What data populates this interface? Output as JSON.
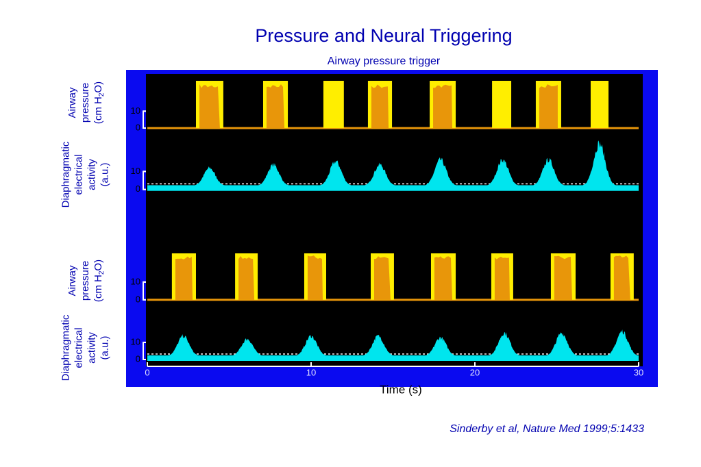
{
  "chart_data": {
    "type": "trace",
    "title": "Pressure and Neural Triggering",
    "subtitle": "Airway pressure trigger",
    "xlabel": "Time (s)",
    "citation": "Sinderby et al, Nature Med 1999;5:1433",
    "xlim": [
      0,
      30
    ],
    "xticks": [
      0,
      10,
      20,
      30
    ],
    "panels": [
      {
        "kind": "pressure",
        "ylabel": [
          "Airway",
          "pressure"
        ],
        "unit": [
          "(cm H",
          "2",
          "O)"
        ],
        "ylim": [
          -2,
          32
        ],
        "yticks": [
          0,
          10
        ],
        "color": "#e8960a",
        "window_color": "#ffee00",
        "windows": [
          [
            2.97,
            4.64
          ],
          [
            7.07,
            8.58
          ],
          [
            10.75,
            12.0
          ],
          [
            13.47,
            14.94
          ],
          [
            17.24,
            18.83
          ],
          [
            21.05,
            22.22
          ],
          [
            23.72,
            25.27
          ],
          [
            27.07,
            28.16
          ]
        ],
        "levels": [
          26,
          26,
          0,
          26,
          26,
          0,
          26,
          0
        ]
      },
      {
        "kind": "eadi",
        "ylabel": [
          "Diaphragmatic",
          "electrical",
          "activity",
          "(a.u.)"
        ],
        "ylim": [
          -2,
          31
        ],
        "yticks": [
          0,
          10
        ],
        "color": "#00e5ee",
        "peak_times": [
          3.8,
          7.7,
          11.5,
          14.2,
          17.9,
          21.7,
          24.5,
          27.6
        ],
        "peaks": [
          13,
          15,
          17,
          15,
          18,
          18,
          18,
          28
        ]
      },
      {
        "kind": "pressure",
        "ylabel": [
          "Airway",
          "pressure"
        ],
        "unit": [
          "(cm H",
          "2",
          "O)"
        ],
        "ylim": [
          -2,
          30
        ],
        "yticks": [
          0,
          10
        ],
        "color": "#e8960a",
        "window_color": "#ffee00",
        "windows": [
          [
            1.5,
            2.97
          ],
          [
            5.36,
            6.74
          ],
          [
            9.58,
            10.92
          ],
          [
            13.64,
            15.06
          ],
          [
            17.32,
            18.83
          ],
          [
            21.0,
            22.34
          ],
          [
            24.64,
            26.15
          ],
          [
            28.28,
            29.7
          ]
        ],
        "levels": [
          25,
          25,
          25,
          25,
          25,
          25,
          25,
          25
        ]
      },
      {
        "kind": "eadi",
        "ylabel": [
          "Diaphragmatic",
          "electrical",
          "activity",
          "(a.u.)"
        ],
        "ylim": [
          -2,
          22
        ],
        "yticks": [
          0,
          10
        ],
        "color": "#00e5ee",
        "peak_times": [
          2.2,
          6.1,
          10.0,
          14.1,
          17.9,
          21.8,
          25.3,
          29.0
        ],
        "peaks": [
          15,
          13,
          15,
          15,
          14,
          17,
          17,
          18
        ]
      }
    ]
  }
}
